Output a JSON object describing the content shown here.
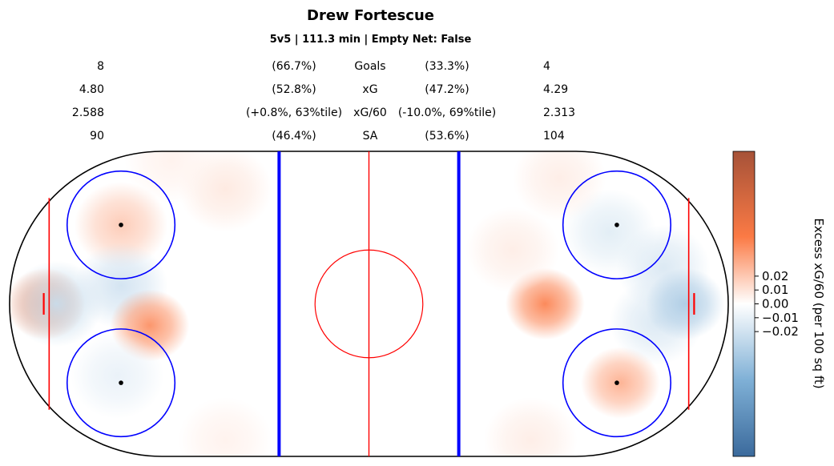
{
  "header": {
    "title": "Drew Fortescue",
    "subtitle": "5v5 | 111.3 min | Empty Net: False"
  },
  "stats": [
    {
      "label": "Goals",
      "left_value": "8",
      "left_pct": "(66.7%)",
      "right_pct": "(33.3%)",
      "right_value": "4"
    },
    {
      "label": "xG",
      "left_value": "4.80",
      "left_pct": "(52.8%)",
      "right_pct": "(47.2%)",
      "right_value": "4.29"
    },
    {
      "label": "xG/60",
      "left_value": "2.588",
      "left_pct": "(+0.8%, 63%tile)",
      "right_pct": "(-10.0%, 69%tile)",
      "right_value": "2.313"
    },
    {
      "label": "SA",
      "left_value": "90",
      "left_pct": "(46.4%)",
      "right_pct": "(53.6%)",
      "right_value": "104"
    }
  ],
  "chart_data": {
    "type": "heatmap",
    "title": "Drew Fortescue",
    "subtitle": "5v5 | 111.3 min | Empty Net: False",
    "description_units": "feet, rink coordinates x in [-100, 100], y in [-42.5, 42.5]",
    "hotspots": [
      {
        "x": -90,
        "y": 0,
        "value": 0.025
      },
      {
        "x": -87,
        "y": 0,
        "value": -0.015
      },
      {
        "x": -69,
        "y": 22,
        "value": 0.012
      },
      {
        "x": -69,
        "y": 5,
        "value": -0.012
      },
      {
        "x": -61,
        "y": -6,
        "value": 0.025
      },
      {
        "x": -70,
        "y": -20,
        "value": -0.006
      },
      {
        "x": -40,
        "y": 32,
        "value": 0.005
      },
      {
        "x": -55,
        "y": 40,
        "value": 0.003
      },
      {
        "x": -40,
        "y": -38,
        "value": 0.003
      },
      {
        "x": 49,
        "y": 0,
        "value": 0.028
      },
      {
        "x": 70,
        "y": -22,
        "value": 0.018
      },
      {
        "x": 67,
        "y": 20,
        "value": -0.008
      },
      {
        "x": 82,
        "y": 10,
        "value": -0.01
      },
      {
        "x": 80,
        "y": -5,
        "value": -0.01
      },
      {
        "x": 88,
        "y": 0,
        "value": -0.022
      },
      {
        "x": 53,
        "y": 35,
        "value": 0.004
      },
      {
        "x": 45,
        "y": -38,
        "value": 0.004
      },
      {
        "x": 40,
        "y": 15,
        "value": 0.004
      }
    ],
    "colorbar": {
      "label": "Excess xG/60 (per 100 sq ft)",
      "ticks": [
        "0.02",
        "0.01",
        "0.00",
        "−0.01",
        "−0.02"
      ],
      "tick_values": [
        0.02,
        0.01,
        0.0,
        -0.01,
        -0.02
      ],
      "range": [
        -0.11,
        0.11
      ],
      "colors": {
        "low": "#3b6a9c",
        "mid": "#ffffff",
        "high": "#a65238"
      }
    }
  },
  "rink": {
    "board_color": "#000000",
    "blue_line_color": "#0000ff",
    "red_line_color": "#ff0000",
    "circle_color": "#0000ff",
    "center_circle_color": "#ff0000",
    "dot_color": "#000000"
  }
}
